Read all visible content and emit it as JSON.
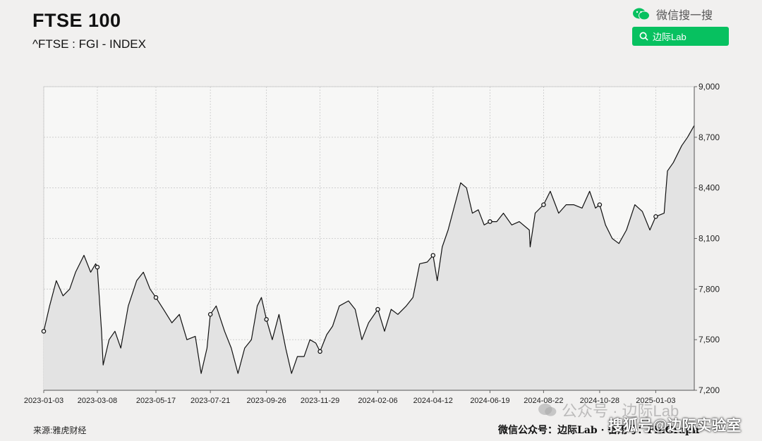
{
  "header": {
    "title": "FTSE 100",
    "subtitle": "^FTSE : FGI - INDEX"
  },
  "wechat": {
    "label": "微信搜一搜",
    "search_label": "边际Lab"
  },
  "footer": {
    "source": "来源:雅虎财经",
    "credit": "微信公众号：边际Lab · 备用号：FinGraph",
    "watermark": "公众号 · 边际Lab",
    "watermark2": "搜狐号@边际实验室"
  },
  "colors": {
    "accent": "#07c160",
    "line": "#111111",
    "area": "#e3e3e3"
  },
  "chart_data": {
    "type": "area",
    "title": "FTSE 100",
    "subtitle": "^FTSE : FGI - INDEX",
    "xlabel": "",
    "ylabel": "",
    "ylim": [
      7200,
      9000
    ],
    "y_ticks": [
      "9,000",
      "8,700",
      "8,400",
      "8,100",
      "7,800",
      "7,500",
      "7,200"
    ],
    "y_tick_values": [
      9000,
      8700,
      8400,
      8100,
      7800,
      7500,
      7200
    ],
    "x_ticks": [
      "2023-01-03",
      "2023-03-08",
      "2023-05-17",
      "2023-07-21",
      "2023-09-26",
      "2023-11-29",
      "2024-02-06",
      "2024-04-12",
      "2024-06-19",
      "2024-08-22",
      "2024-10-28",
      "2025-01-03"
    ],
    "y_axis_position": "right",
    "grid": true,
    "x_range": [
      "2023-01-03",
      "2025-02-18"
    ],
    "series": [
      {
        "values": [
          [
            "2023-01-03",
            7550
          ],
          [
            "2023-01-10",
            7700
          ],
          [
            "2023-01-18",
            7850
          ],
          [
            "2023-01-26",
            7760
          ],
          [
            "2023-02-03",
            7800
          ],
          [
            "2023-02-10",
            7900
          ],
          [
            "2023-02-20",
            8000
          ],
          [
            "2023-02-28",
            7900
          ],
          [
            "2023-03-06",
            7950
          ],
          [
            "2023-03-08",
            7930
          ],
          [
            "2023-03-13",
            7550
          ],
          [
            "2023-03-15",
            7350
          ],
          [
            "2023-03-22",
            7500
          ],
          [
            "2023-03-29",
            7550
          ],
          [
            "2023-04-05",
            7450
          ],
          [
            "2023-04-14",
            7700
          ],
          [
            "2023-04-24",
            7850
          ],
          [
            "2023-05-02",
            7900
          ],
          [
            "2023-05-10",
            7800
          ],
          [
            "2023-05-17",
            7750
          ],
          [
            "2023-05-26",
            7680
          ],
          [
            "2023-06-05",
            7600
          ],
          [
            "2023-06-14",
            7650
          ],
          [
            "2023-06-23",
            7500
          ],
          [
            "2023-07-03",
            7520
          ],
          [
            "2023-07-10",
            7300
          ],
          [
            "2023-07-17",
            7450
          ],
          [
            "2023-07-21",
            7650
          ],
          [
            "2023-07-28",
            7700
          ],
          [
            "2023-08-07",
            7550
          ],
          [
            "2023-08-15",
            7450
          ],
          [
            "2023-08-23",
            7300
          ],
          [
            "2023-08-31",
            7450
          ],
          [
            "2023-09-08",
            7500
          ],
          [
            "2023-09-15",
            7700
          ],
          [
            "2023-09-20",
            7750
          ],
          [
            "2023-09-26",
            7620
          ],
          [
            "2023-10-03",
            7500
          ],
          [
            "2023-10-11",
            7650
          ],
          [
            "2023-10-19",
            7450
          ],
          [
            "2023-10-26",
            7300
          ],
          [
            "2023-11-02",
            7400
          ],
          [
            "2023-11-10",
            7400
          ],
          [
            "2023-11-17",
            7500
          ],
          [
            "2023-11-24",
            7480
          ],
          [
            "2023-11-29",
            7430
          ],
          [
            "2023-12-07",
            7530
          ],
          [
            "2023-12-14",
            7580
          ],
          [
            "2023-12-22",
            7700
          ],
          [
            "2024-01-02",
            7730
          ],
          [
            "2024-01-10",
            7680
          ],
          [
            "2024-01-18",
            7500
          ],
          [
            "2024-01-26",
            7600
          ],
          [
            "2024-02-06",
            7680
          ],
          [
            "2024-02-14",
            7550
          ],
          [
            "2024-02-22",
            7680
          ],
          [
            "2024-03-01",
            7650
          ],
          [
            "2024-03-11",
            7700
          ],
          [
            "2024-03-19",
            7750
          ],
          [
            "2024-03-27",
            7950
          ],
          [
            "2024-04-05",
            7960
          ],
          [
            "2024-04-12",
            8000
          ],
          [
            "2024-04-17",
            7850
          ],
          [
            "2024-04-23",
            8050
          ],
          [
            "2024-04-30",
            8150
          ],
          [
            "2024-05-08",
            8300
          ],
          [
            "2024-05-15",
            8430
          ],
          [
            "2024-05-22",
            8400
          ],
          [
            "2024-05-29",
            8250
          ],
          [
            "2024-06-05",
            8270
          ],
          [
            "2024-06-12",
            8180
          ],
          [
            "2024-06-19",
            8200
          ],
          [
            "2024-06-27",
            8200
          ],
          [
            "2024-07-05",
            8250
          ],
          [
            "2024-07-15",
            8180
          ],
          [
            "2024-07-24",
            8200
          ],
          [
            "2024-08-05",
            8150
          ],
          [
            "2024-08-06",
            8050
          ],
          [
            "2024-08-12",
            8250
          ],
          [
            "2024-08-22",
            8300
          ],
          [
            "2024-08-30",
            8380
          ],
          [
            "2024-09-09",
            8250
          ],
          [
            "2024-09-18",
            8300
          ],
          [
            "2024-09-27",
            8300
          ],
          [
            "2024-10-07",
            8280
          ],
          [
            "2024-10-16",
            8380
          ],
          [
            "2024-10-23",
            8280
          ],
          [
            "2024-10-28",
            8300
          ],
          [
            "2024-11-04",
            8180
          ],
          [
            "2024-11-12",
            8100
          ],
          [
            "2024-11-20",
            8070
          ],
          [
            "2024-11-29",
            8150
          ],
          [
            "2024-12-09",
            8300
          ],
          [
            "2024-12-18",
            8260
          ],
          [
            "2024-12-27",
            8150
          ],
          [
            "2025-01-03",
            8230
          ],
          [
            "2025-01-13",
            8250
          ],
          [
            "2025-01-17",
            8500
          ],
          [
            "2025-01-24",
            8550
          ],
          [
            "2025-02-03",
            8650
          ],
          [
            "2025-02-10",
            8700
          ],
          [
            "2025-02-18",
            8770
          ]
        ]
      }
    ],
    "markers": [
      [
        "2023-01-03",
        7550
      ],
      [
        "2023-03-08",
        7930
      ],
      [
        "2023-05-17",
        7750
      ],
      [
        "2023-07-21",
        7650
      ],
      [
        "2023-09-26",
        7620
      ],
      [
        "2023-11-29",
        7430
      ],
      [
        "2024-02-06",
        7680
      ],
      [
        "2024-04-12",
        8000
      ],
      [
        "2024-06-19",
        8200
      ],
      [
        "2024-08-22",
        8300
      ],
      [
        "2024-10-28",
        8300
      ],
      [
        "2025-01-03",
        8230
      ]
    ]
  }
}
